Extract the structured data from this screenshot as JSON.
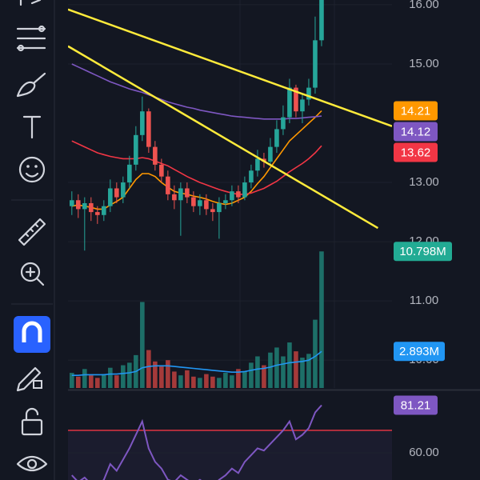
{
  "chart_data": [
    {
      "type": "candlestick",
      "xlim": [
        -0.6,
        50
      ],
      "ylim": [
        9.53,
        16.08
      ],
      "yticks": [
        {
          "value": 16,
          "label": "16.00"
        },
        {
          "value": 15,
          "label": "15.00"
        },
        {
          "value": 13,
          "label": "13.00"
        },
        {
          "value": 12,
          "label": "12.00"
        },
        {
          "value": 11,
          "label": "11.00"
        },
        {
          "value": 10,
          "label": "10.00"
        }
      ],
      "grid": true,
      "up_color": "#26a69a",
      "down_color": "#ef5350",
      "open": [
        12.6,
        12.7,
        12.55,
        12.65,
        12.5,
        12.45,
        12.6,
        12.9,
        12.75,
        13.0,
        13.3,
        13.8,
        14.2,
        13.6,
        13.3,
        13.1,
        12.8,
        12.7,
        12.9,
        12.75,
        12.6,
        12.7,
        12.55,
        12.5,
        12.65,
        12.7,
        12.85,
        12.75,
        13.0,
        13.2,
        13.4,
        13.35,
        13.6,
        13.9,
        14.1,
        14.6,
        14.2,
        14.4,
        14.6,
        15.4
      ],
      "high": [
        12.85,
        12.8,
        12.75,
        12.75,
        12.6,
        12.7,
        13.05,
        13.0,
        13.1,
        13.45,
        13.95,
        14.45,
        14.25,
        13.7,
        13.4,
        13.2,
        12.95,
        13.0,
        13.0,
        12.85,
        12.8,
        12.8,
        12.65,
        12.75,
        12.8,
        12.95,
        12.95,
        13.1,
        13.3,
        13.55,
        13.5,
        13.75,
        14.05,
        14.3,
        14.75,
        14.65,
        14.5,
        14.75,
        15.8,
        16.1
      ],
      "low": [
        12.45,
        12.4,
        11.85,
        12.35,
        12.3,
        12.35,
        12.5,
        12.65,
        12.65,
        12.9,
        13.2,
        13.7,
        13.5,
        13.2,
        13.0,
        12.7,
        12.55,
        12.1,
        12.65,
        12.5,
        12.45,
        12.45,
        12.35,
        12.05,
        12.55,
        12.6,
        12.65,
        12.7,
        12.9,
        13.1,
        13.25,
        13.3,
        13.5,
        13.8,
        14.0,
        14.1,
        14.0,
        14.3,
        14.5,
        15.3
      ],
      "close": [
        12.7,
        12.55,
        12.65,
        12.5,
        12.45,
        12.6,
        12.9,
        12.75,
        13.0,
        13.3,
        13.8,
        14.2,
        13.6,
        13.3,
        13.1,
        12.8,
        12.7,
        12.9,
        12.75,
        12.6,
        12.7,
        12.55,
        12.5,
        12.65,
        12.7,
        12.85,
        12.75,
        13.0,
        13.2,
        13.4,
        13.35,
        13.6,
        13.9,
        14.1,
        14.6,
        14.2,
        14.4,
        14.6,
        15.4,
        16.1
      ],
      "series": [
        {
          "color": "#ff9800",
          "badge": "14.21",
          "values": [
            12.6,
            12.62,
            12.6,
            12.58,
            12.55,
            12.55,
            12.62,
            12.68,
            12.75,
            12.9,
            13.05,
            13.15,
            13.15,
            13.1,
            13.0,
            12.92,
            12.85,
            12.82,
            12.8,
            12.77,
            12.75,
            12.72,
            12.68,
            12.65,
            12.63,
            12.65,
            12.7,
            12.75,
            12.85,
            12.98,
            13.1,
            13.25,
            13.4,
            13.55,
            13.7,
            13.8,
            13.9,
            14.0,
            14.1,
            14.21
          ]
        },
        {
          "color": "#7e57c2",
          "badge": "14.12",
          "values": [
            15.0,
            14.95,
            14.9,
            14.85,
            14.8,
            14.75,
            14.7,
            14.66,
            14.62,
            14.58,
            14.55,
            14.52,
            14.48,
            14.44,
            14.4,
            14.36,
            14.33,
            14.3,
            14.27,
            14.25,
            14.22,
            14.2,
            14.18,
            14.16,
            14.14,
            14.12,
            14.11,
            14.1,
            14.09,
            14.08,
            14.07,
            14.07,
            14.07,
            14.07,
            14.08,
            14.08,
            14.09,
            14.1,
            14.11,
            14.12
          ]
        },
        {
          "color": "#f23645",
          "badge": "13.62",
          "values": [
            13.7,
            13.65,
            13.6,
            13.55,
            13.5,
            13.47,
            13.44,
            13.42,
            13.4,
            13.4,
            13.4,
            13.42,
            13.4,
            13.36,
            13.32,
            13.28,
            13.22,
            13.16,
            13.1,
            13.05,
            13.0,
            12.96,
            12.92,
            12.88,
            12.85,
            12.82,
            12.8,
            12.8,
            12.82,
            12.86,
            12.9,
            12.96,
            13.02,
            13.1,
            13.18,
            13.25,
            13.32,
            13.4,
            13.5,
            13.62
          ]
        }
      ],
      "trendlines": [
        {
          "color": "#ffeb3b",
          "x": [
            -0.6,
            50
          ],
          "y": [
            15.92,
            13.95
          ]
        },
        {
          "color": "#ffeb3b",
          "x": [
            -0.6,
            47.8
          ],
          "y": [
            15.3,
            12.23
          ]
        }
      ]
    },
    {
      "type": "bar",
      "xlim": [
        -0.6,
        50
      ],
      "ylim": [
        0,
        11.7
      ],
      "up_color": "#1d6f68",
      "down_color": "#a53a3a",
      "values": [
        1.2,
        0.9,
        1.5,
        1.0,
        0.8,
        1.1,
        1.6,
        1.0,
        1.8,
        2.0,
        2.6,
        6.8,
        3.0,
        2.1,
        1.7,
        2.2,
        1.3,
        1.0,
        1.4,
        0.9,
        0.8,
        1.1,
        0.9,
        0.8,
        1.2,
        1.0,
        1.5,
        1.3,
        2.0,
        2.5,
        1.8,
        2.8,
        3.2,
        2.5,
        3.6,
        2.9,
        2.4,
        2.7,
        5.4,
        10.798
      ],
      "badge": "10.798M",
      "badge_color": "#22ab94",
      "series": [
        {
          "color": "#2196f3",
          "badge": "2.893M",
          "values": [
            1.0,
            1.0,
            1.05,
            1.05,
            1.05,
            1.05,
            1.1,
            1.1,
            1.15,
            1.2,
            1.3,
            1.6,
            1.7,
            1.75,
            1.75,
            1.75,
            1.7,
            1.65,
            1.6,
            1.55,
            1.5,
            1.45,
            1.4,
            1.35,
            1.3,
            1.25,
            1.25,
            1.3,
            1.4,
            1.5,
            1.55,
            1.65,
            1.8,
            1.9,
            2.0,
            2.05,
            2.1,
            2.2,
            2.5,
            2.893
          ]
        }
      ]
    },
    {
      "type": "line",
      "xlim": [
        -0.6,
        50
      ],
      "ylim": [
        47.9,
        87.1
      ],
      "yticks": [
        {
          "value": 60,
          "label": "60.00"
        }
      ],
      "levels": [
        70
      ],
      "level_color": "#f23645",
      "series": [
        {
          "color": "#7e57c2",
          "badge": "81.21",
          "values": [
            50,
            47,
            49,
            46,
            45,
            48,
            55,
            52,
            57,
            62,
            68,
            74,
            62,
            56,
            53,
            48,
            47,
            50,
            48,
            46,
            48,
            46,
            45,
            48,
            50,
            53,
            51,
            56,
            59,
            62,
            61,
            64,
            67,
            70,
            74,
            66,
            68,
            71,
            78,
            81.21
          ]
        }
      ]
    }
  ]
}
